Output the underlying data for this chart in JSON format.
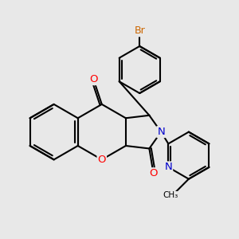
{
  "background_color": "#e8e8e8",
  "bond_color": "#000000",
  "bond_width": 1.5,
  "atom_colors": {
    "O": "#ff0000",
    "N": "#0000cc",
    "Br": "#cc6600",
    "C": "#000000"
  },
  "font_size_atom": 8.5,
  "figsize": [
    3.0,
    3.0
  ],
  "dpi": 100,
  "scale": 1.0
}
